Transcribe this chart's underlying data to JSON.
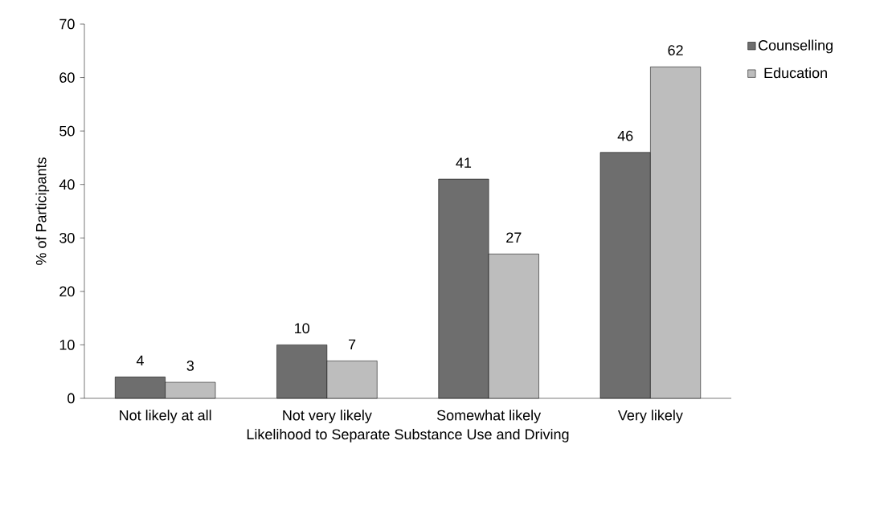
{
  "chart_data": {
    "type": "bar",
    "xlabel": "Likelihood to Separate Substance Use and Driving",
    "ylabel": "% of Participants",
    "categories": [
      "Not likely at all",
      "Not very likely",
      "Somewhat likely",
      "Very likely"
    ],
    "series": [
      {
        "name": "Counselling",
        "color": "#6e6e6e",
        "values": [
          4,
          10,
          41,
          46
        ]
      },
      {
        "name": "Education",
        "color": "#bdbdbd",
        "values": [
          3,
          7,
          27,
          62
        ]
      }
    ],
    "ylim": [
      0,
      70
    ],
    "yticks": [
      0,
      10,
      20,
      30,
      40,
      50,
      60,
      70
    ],
    "data_labels": true,
    "legend": "right",
    "grid": false
  }
}
